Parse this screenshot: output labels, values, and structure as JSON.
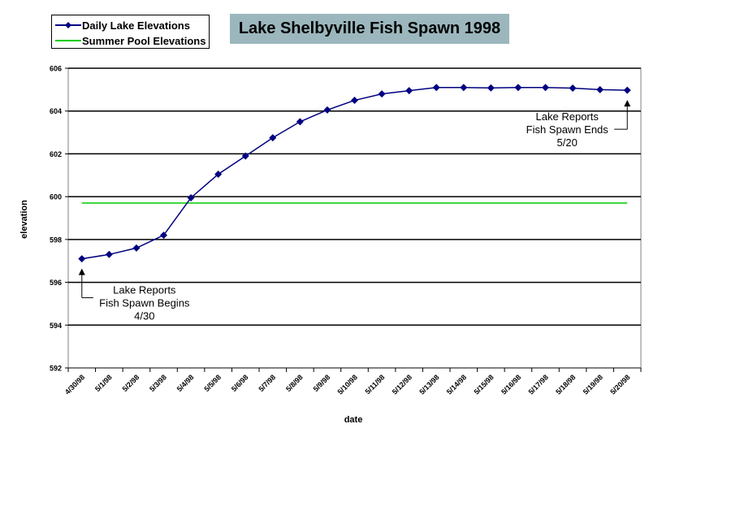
{
  "chart_data": {
    "type": "line",
    "title": "Lake Shelbyville Fish Spawn 1998",
    "xlabel": "date",
    "ylabel": "elevation",
    "ylim": [
      592,
      606
    ],
    "yticks": [
      "592",
      "594",
      "596",
      "598",
      "600",
      "602",
      "604",
      "606"
    ],
    "grid": "horizontal",
    "legend_position": "top-left",
    "categories": [
      "4/30/98",
      "5/1/98",
      "5/2/98",
      "5/3/98",
      "5/4/98",
      "5/5/98",
      "5/6/98",
      "5/7/98",
      "5/8/98",
      "5/9/98",
      "5/10/98",
      "5/11/98",
      "5/12/98",
      "5/13/98",
      "5/14/98",
      "5/15/98",
      "5/16/98",
      "5/17/98",
      "5/18/98",
      "5/19/98",
      "5/20/98"
    ],
    "series": [
      {
        "name": "Daily Lake Elevations",
        "color": "#000080",
        "marker": "diamond",
        "values": [
          597.1,
          597.3,
          597.6,
          598.2,
          599.95,
          601.05,
          601.9,
          602.75,
          603.5,
          604.05,
          604.5,
          604.8,
          604.95,
          605.1,
          605.1,
          605.08,
          605.1,
          605.1,
          605.07,
          605.0,
          604.97
        ]
      },
      {
        "name": "Summer Pool Elevations",
        "color": "#00cc00",
        "marker": "none",
        "values": [
          599.7,
          599.7,
          599.7,
          599.7,
          599.7,
          599.7,
          599.7,
          599.7,
          599.7,
          599.7,
          599.7,
          599.7,
          599.7,
          599.7,
          599.7,
          599.7,
          599.7,
          599.7,
          599.7,
          599.7,
          599.7
        ]
      }
    ],
    "annotations": [
      {
        "lines": [
          "Lake Reports",
          "Fish Spawn Begins",
          "4/30"
        ],
        "category_index": 0
      },
      {
        "lines": [
          "Lake Reports",
          "Fish Spawn Ends",
          "5/20"
        ],
        "category_index": 20
      }
    ]
  }
}
